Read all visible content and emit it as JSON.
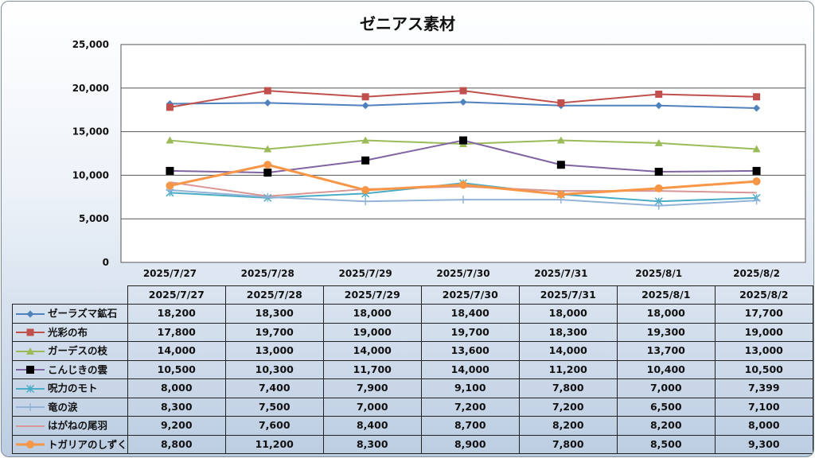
{
  "chart_data": {
    "type": "line",
    "title": "ゼニアス素材",
    "categories": [
      "2025/7/27",
      "2025/7/28",
      "2025/7/29",
      "2025/7/30",
      "2025/7/31",
      "2025/8/1",
      "2025/8/2"
    ],
    "ylim": [
      0,
      25000
    ],
    "yticks": [
      0,
      5000,
      10000,
      15000,
      20000,
      25000
    ],
    "ytick_labels": [
      "0",
      "5,000",
      "10,000",
      "15,000",
      "20,000",
      "25,000"
    ],
    "grid": true,
    "legend": "data-table",
    "series": [
      {
        "name": "ゼーラズマ鉱石",
        "values": [
          18200,
          18300,
          18000,
          18400,
          18000,
          18000,
          17700
        ],
        "labels": [
          "18,200",
          "18,300",
          "18,000",
          "18,400",
          "18,000",
          "18,000",
          "17,700"
        ],
        "color": "#4f81bd",
        "marker": "diamond"
      },
      {
        "name": "光彩の布",
        "values": [
          17800,
          19700,
          19000,
          19700,
          18300,
          19300,
          19000
        ],
        "labels": [
          "17,800",
          "19,700",
          "19,000",
          "19,700",
          "18,300",
          "19,300",
          "19,000"
        ],
        "color": "#c0504d",
        "marker": "square"
      },
      {
        "name": "ガーデスの枝",
        "values": [
          14000,
          13000,
          14000,
          13600,
          14000,
          13700,
          13000
        ],
        "labels": [
          "14,000",
          "13,000",
          "14,000",
          "13,600",
          "14,000",
          "13,700",
          "13,000"
        ],
        "color": "#9bbb59",
        "marker": "triangle"
      },
      {
        "name": "こんじきの雲",
        "values": [
          10500,
          10300,
          11700,
          14000,
          11200,
          10400,
          10500
        ],
        "labels": [
          "10,500",
          "10,300",
          "11,700",
          "14,000",
          "11,200",
          "10,400",
          "10,500"
        ],
        "color": "#8064a2",
        "marker": "bigsquare"
      },
      {
        "name": "呪力のモト",
        "values": [
          8000,
          7400,
          7900,
          9100,
          7800,
          7000,
          7399
        ],
        "labels": [
          "8,000",
          "7,400",
          "7,900",
          "9,100",
          "7,800",
          "7,000",
          "7,399"
        ],
        "color": "#4bacc6",
        "marker": "star"
      },
      {
        "name": "竜の涙",
        "values": [
          8300,
          7500,
          7000,
          7200,
          7200,
          6500,
          7100
        ],
        "labels": [
          "8,300",
          "7,500",
          "7,000",
          "7,200",
          "7,200",
          "6,500",
          "7,100"
        ],
        "color": "#95b3d7",
        "marker": "plus"
      },
      {
        "name": "はがねの尾羽",
        "values": [
          9200,
          7600,
          8400,
          8700,
          8200,
          8200,
          8000
        ],
        "labels": [
          "9,200",
          "7,600",
          "8,400",
          "8,700",
          "8,200",
          "8,200",
          "8,000"
        ],
        "color": "#d99694",
        "marker": "none"
      },
      {
        "name": "トガリアのしずく",
        "values": [
          8800,
          11200,
          8300,
          8900,
          7800,
          8500,
          9300
        ],
        "labels": [
          "8,800",
          "11,200",
          "8,300",
          "8,900",
          "7,800",
          "8,500",
          "9,300"
        ],
        "color": "#f79646",
        "marker": "circle"
      }
    ]
  }
}
